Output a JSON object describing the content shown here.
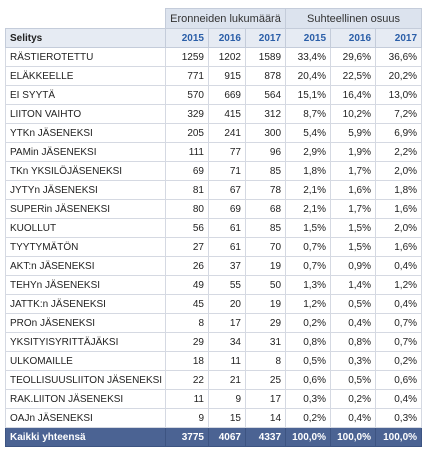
{
  "table": {
    "group_headers": [
      "Eronneiden lukumäärä",
      "Suhteellinen osuus"
    ],
    "label_header": "Selitys",
    "years": [
      "2015",
      "2016",
      "2017",
      "2015",
      "2016",
      "2017"
    ],
    "rows": [
      {
        "label": "RÄSTIEROTETTU",
        "values": [
          "1259",
          "1202",
          "1589",
          "33,4%",
          "29,6%",
          "36,6%"
        ]
      },
      {
        "label": "ELÄKKEELLE",
        "values": [
          "771",
          "915",
          "878",
          "20,4%",
          "22,5%",
          "20,2%"
        ]
      },
      {
        "label": "EI SYYTÄ",
        "values": [
          "570",
          "669",
          "564",
          "15,1%",
          "16,4%",
          "13,0%"
        ]
      },
      {
        "label": "LIITON VAIHTO",
        "values": [
          "329",
          "415",
          "312",
          "8,7%",
          "10,2%",
          "7,2%"
        ]
      },
      {
        "label": "YTKn JÄSENEKSI",
        "values": [
          "205",
          "241",
          "300",
          "5,4%",
          "5,9%",
          "6,9%"
        ]
      },
      {
        "label": "PAMin JÄSENEKSI",
        "values": [
          "111",
          "77",
          "96",
          "2,9%",
          "1,9%",
          "2,2%"
        ]
      },
      {
        "label": "TKn YKSILÖJÄSENEKSI",
        "values": [
          "69",
          "71",
          "85",
          "1,8%",
          "1,7%",
          "2,0%"
        ]
      },
      {
        "label": "JYTYn JÄSENEKSI",
        "values": [
          "81",
          "67",
          "78",
          "2,1%",
          "1,6%",
          "1,8%"
        ]
      },
      {
        "label": "SUPERin JÄSENEKSI",
        "values": [
          "80",
          "69",
          "68",
          "2,1%",
          "1,7%",
          "1,6%"
        ]
      },
      {
        "label": "KUOLLUT",
        "values": [
          "56",
          "61",
          "85",
          "1,5%",
          "1,5%",
          "2,0%"
        ]
      },
      {
        "label": "TYYTYMÄTÖN",
        "values": [
          "27",
          "61",
          "70",
          "0,7%",
          "1,5%",
          "1,6%"
        ]
      },
      {
        "label": "AKT:n JÄSENEKSI",
        "values": [
          "26",
          "37",
          "19",
          "0,7%",
          "0,9%",
          "0,4%"
        ]
      },
      {
        "label": "TEHYn JÄSENEKSI",
        "values": [
          "49",
          "55",
          "50",
          "1,3%",
          "1,4%",
          "1,2%"
        ]
      },
      {
        "label": "JATTK:n JÄSENEKSI",
        "values": [
          "45",
          "20",
          "19",
          "1,2%",
          "0,5%",
          "0,4%"
        ]
      },
      {
        "label": "PROn JÄSENEKSI",
        "values": [
          "8",
          "17",
          "29",
          "0,2%",
          "0,4%",
          "0,7%"
        ]
      },
      {
        "label": "YKSITYISYRITTÄJÄKSI",
        "values": [
          "29",
          "34",
          "31",
          "0,8%",
          "0,8%",
          "0,7%"
        ]
      },
      {
        "label": "ULKOMAILLE",
        "values": [
          "18",
          "11",
          "8",
          "0,5%",
          "0,3%",
          "0,2%"
        ]
      },
      {
        "label": "TEOLLISUUSLIITON JÄSENEKSI",
        "values": [
          "22",
          "21",
          "25",
          "0,6%",
          "0,5%",
          "0,6%"
        ]
      },
      {
        "label": "RAK.LIITON JÄSENEKSI",
        "values": [
          "11",
          "9",
          "17",
          "0,3%",
          "0,2%",
          "0,4%"
        ]
      },
      {
        "label": "OAJn JÄSENEKSI",
        "values": [
          "9",
          "15",
          "14",
          "0,2%",
          "0,4%",
          "0,3%"
        ]
      }
    ],
    "total": {
      "label": "Kaikki yhteensä",
      "values": [
        "3775",
        "4067",
        "4337",
        "100,0%",
        "100,0%",
        "100,0%"
      ]
    }
  }
}
